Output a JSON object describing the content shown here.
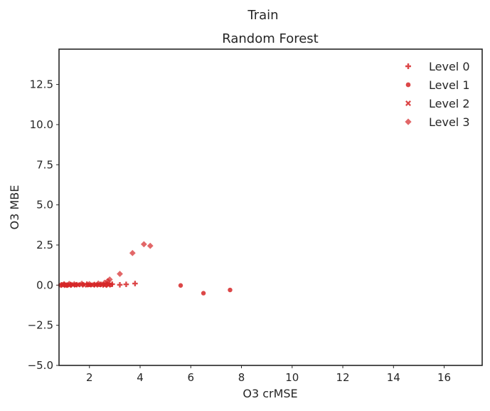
{
  "figure": {
    "suptitle": "Train"
  },
  "chart_data": {
    "type": "scatter",
    "title": "Random Forest",
    "xlabel": "O3 crMSE",
    "ylabel": "O3 MBE",
    "xlim": [
      0.8,
      17.5
    ],
    "ylim": [
      -5.0,
      14.7
    ],
    "xticks": [
      2,
      4,
      6,
      8,
      10,
      12,
      14,
      16
    ],
    "yticks": [
      -5.0,
      -2.5,
      0.0,
      2.5,
      5.0,
      7.5,
      10.0,
      12.5
    ],
    "ytick_labels": [
      "−5.0",
      "−2.5",
      "0.0",
      "2.5",
      "5.0",
      "7.5",
      "10.0",
      "12.5"
    ],
    "grid": false,
    "legend_position": "top-right",
    "color": "#d62728",
    "series": [
      {
        "name": "Level 0",
        "marker": "plus",
        "points": [
          [
            0.9,
            0.02
          ],
          [
            1.0,
            0.05
          ],
          [
            1.1,
            0.0
          ],
          [
            1.25,
            0.04
          ],
          [
            1.5,
            0.03
          ],
          [
            1.9,
            0.06
          ],
          [
            2.2,
            0.04
          ],
          [
            2.45,
            0.05
          ],
          [
            2.7,
            0.08
          ],
          [
            2.9,
            0.06
          ],
          [
            3.2,
            0.02
          ],
          [
            3.45,
            0.05
          ],
          [
            3.8,
            0.1
          ]
        ]
      },
      {
        "name": "Level 1",
        "marker": "circle",
        "points": [
          [
            0.85,
            0.0
          ],
          [
            0.95,
            0.03
          ],
          [
            1.05,
            0.01
          ],
          [
            1.15,
            0.02
          ],
          [
            1.3,
            0.04
          ],
          [
            1.45,
            0.02
          ],
          [
            1.6,
            0.03
          ],
          [
            1.75,
            0.05
          ],
          [
            1.95,
            0.02
          ],
          [
            2.05,
            0.01
          ],
          [
            2.15,
            0.03
          ],
          [
            2.3,
            0.04
          ],
          [
            2.4,
            0.02
          ],
          [
            2.55,
            0.05
          ],
          [
            2.65,
            0.03
          ],
          [
            2.75,
            0.06
          ],
          [
            2.85,
            0.02
          ],
          [
            5.6,
            -0.02
          ],
          [
            6.5,
            -0.5
          ],
          [
            7.55,
            -0.3
          ]
        ]
      },
      {
        "name": "Level 2",
        "marker": "x",
        "points": [
          [
            0.95,
            -0.02
          ],
          [
            1.1,
            0.01
          ],
          [
            1.2,
            -0.01
          ],
          [
            1.35,
            0.0
          ],
          [
            1.55,
            0.02
          ],
          [
            1.8,
            0.0
          ],
          [
            2.0,
            0.01
          ],
          [
            2.25,
            0.0
          ],
          [
            2.5,
            0.02
          ],
          [
            2.6,
            -0.01
          ],
          [
            2.75,
            0.0
          ]
        ]
      },
      {
        "name": "Level 3",
        "marker": "diamond",
        "points": [
          [
            1.0,
            0.05
          ],
          [
            1.2,
            0.08
          ],
          [
            1.4,
            0.06
          ],
          [
            1.7,
            0.09
          ],
          [
            2.0,
            0.07
          ],
          [
            2.35,
            0.1
          ],
          [
            2.6,
            0.15
          ],
          [
            2.72,
            0.25
          ],
          [
            2.8,
            0.35
          ],
          [
            3.2,
            0.7
          ],
          [
            3.7,
            2.0
          ],
          [
            4.15,
            2.55
          ],
          [
            4.4,
            2.45
          ]
        ]
      }
    ]
  }
}
